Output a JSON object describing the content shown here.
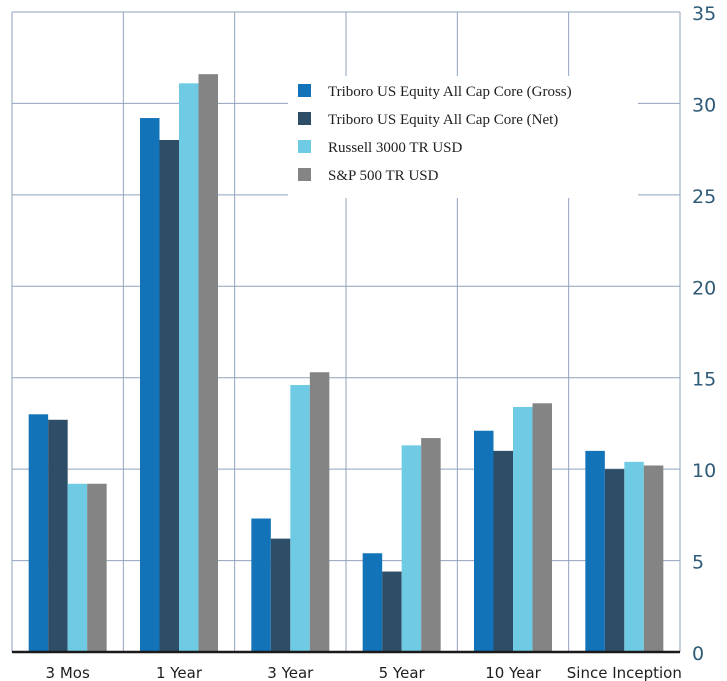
{
  "chart_data": {
    "type": "bar",
    "categories": [
      "3 Mos",
      "1 Year",
      "3 Year",
      "5 Year",
      "10 Year",
      "Since Inception"
    ],
    "series": [
      {
        "name": "Triboro US Equity All Cap Core (Gross)",
        "color": "#1273b8",
        "values": [
          13.0,
          29.2,
          7.3,
          5.4,
          12.1,
          11.0
        ]
      },
      {
        "name": "Triboro US Equity All Cap Core (Net)",
        "color": "#2e4e68",
        "values": [
          12.7,
          28.0,
          6.2,
          4.4,
          11.0,
          10.0
        ]
      },
      {
        "name": "Russell 3000 TR USD",
        "color": "#6fcbe3",
        "values": [
          9.2,
          31.1,
          14.6,
          11.3,
          13.4,
          10.4
        ]
      },
      {
        "name": "S&P 500 TR USD",
        "color": "#848484",
        "values": [
          9.2,
          31.6,
          15.3,
          11.7,
          13.6,
          10.2
        ]
      }
    ],
    "ylim": [
      0,
      35
    ],
    "yticks": [
      "0",
      "5",
      "10",
      "15",
      "20",
      "25",
      "30",
      "35"
    ],
    "y_axis_side": "right",
    "grid": true,
    "legend_position": "top-right",
    "title": "",
    "xlabel": "",
    "ylabel": ""
  }
}
